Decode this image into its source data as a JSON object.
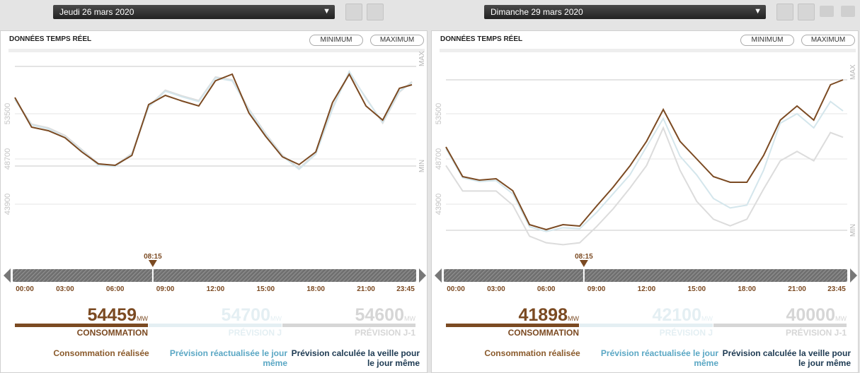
{
  "panels": [
    {
      "date": "Jeudi 26 mars 2020",
      "title": "DONNÉES TEMPS RÉEL",
      "buttons": [
        "MINIMUM",
        "MAXIMUM"
      ],
      "chart": {
        "type": "line",
        "x": [
          0,
          1,
          2,
          3,
          4,
          5,
          6,
          7,
          8,
          9,
          10,
          11,
          12,
          13,
          14,
          15,
          16,
          17,
          18,
          19,
          20,
          21,
          22,
          23,
          23.75
        ],
        "xlim": [
          0,
          23.75
        ],
        "xticks": [
          {
            "value": 0,
            "label": "00:00"
          },
          {
            "value": 3,
            "label": "03:00"
          },
          {
            "value": 6,
            "label": "06:00"
          },
          {
            "value": 9,
            "label": "09:00"
          },
          {
            "value": 12,
            "label": "12:00"
          },
          {
            "value": 15,
            "label": "15:00"
          },
          {
            "value": 18,
            "label": "18:00"
          },
          {
            "value": 21,
            "label": "21:00"
          },
          {
            "value": 23.75,
            "label": "23:45"
          }
        ],
        "ylim": [
          37825,
          59575
        ],
        "yticks": [
          43900,
          48700,
          53500
        ],
        "grid": true,
        "max": {
          "label": "MAX",
          "value": 58525
        },
        "min": {
          "label": "MIN",
          "value": 47950
        },
        "cursor": {
          "label": "08:15",
          "value": 8.25
        },
        "series": [
          {
            "name": "Prévision calculée la veille pour le jour même",
            "color": "#dcdcdc",
            "values": [
              55000,
              52400,
              52000,
              51200,
              49700,
              48200,
              48000,
              49300,
              54300,
              56000,
              55400,
              54900,
              57400,
              57100,
              54000,
              51400,
              49100,
              47700,
              49300,
              54200,
              57800,
              55200,
              52500,
              55800,
              56900
            ]
          },
          {
            "name": "Prévision réactualisée le jour même",
            "color": "#d4e6ec",
            "values": [
              55000,
              52300,
              51900,
              51000,
              49600,
              48000,
              47900,
              49200,
              54200,
              55900,
              55300,
              54800,
              57300,
              57000,
              53900,
              51300,
              49000,
              47600,
              49200,
              54000,
              58000,
              55100,
              52600,
              55900,
              56800
            ]
          },
          {
            "name": "Consommation réalisée",
            "color": "#7b4a22",
            "values": [
              55225,
              52075,
              51700,
              50950,
              49450,
              48175,
              48025,
              49075,
              54475,
              55450,
              54850,
              54325,
              57000,
              57700,
              53575,
              51100,
              48925,
              48100,
              49450,
              54700,
              57700,
              54325,
              52825,
              56200,
              56575
            ]
          }
        ]
      },
      "summary": [
        {
          "value": 54459,
          "unit": "MW",
          "label": "CONSOMMATION"
        },
        {
          "value": 54700,
          "unit": "MW",
          "label": "PRÉVISION J"
        },
        {
          "value": 54600,
          "unit": "MW",
          "label": "PRÉVISION J-1"
        }
      ]
    },
    {
      "date": "Dimanche 29 mars 2020",
      "title": "DONNÉES TEMPS RÉEL",
      "buttons": [
        "MINIMUM",
        "MAXIMUM"
      ],
      "chart": {
        "type": "line",
        "x": [
          0,
          1,
          2,
          3,
          4,
          5,
          6,
          7,
          8,
          9,
          10,
          11,
          12,
          13,
          14,
          15,
          16,
          17,
          18,
          19,
          20,
          21,
          22,
          23,
          23.75
        ],
        "xlim": [
          0,
          23.75
        ],
        "xticks": [
          {
            "value": 0,
            "label": "00:00"
          },
          {
            "value": 3,
            "label": "03:00"
          },
          {
            "value": 6,
            "label": "06:00"
          },
          {
            "value": 9,
            "label": "09:00"
          },
          {
            "value": 12,
            "label": "12:00"
          },
          {
            "value": 15,
            "label": "15:00"
          },
          {
            "value": 18,
            "label": "18:00"
          },
          {
            "value": 21,
            "label": "21:00"
          },
          {
            "value": 23.75,
            "label": "23:45"
          }
        ],
        "ylim": [
          37825,
          59575
        ],
        "yticks": [
          43900,
          48700,
          53500
        ],
        "grid": true,
        "max": {
          "label": "MAX",
          "value": 57100
        },
        "min": {
          "label": "MIN",
          "value": 41125
        },
        "cursor": {
          "label": "08:15",
          "value": 8.25
        },
        "series": [
          {
            "name": "Prévision calculée la veille pour le jour même",
            "color": "#dcdcdc",
            "values": [
              48000,
              45300,
              45300,
              45300,
              43800,
              40500,
              39800,
              39600,
              39800,
              41500,
              43400,
              45600,
              48000,
              52000,
              47500,
              44200,
              42300,
              41600,
              42300,
              45500,
              48500,
              49500,
              48500,
              51500,
              51000
            ]
          },
          {
            "name": "Prévision réactualisée le jour même",
            "color": "#d4e6ec",
            "values": [
              49800,
              46700,
              46300,
              46400,
              45000,
              41500,
              41000,
              41400,
              41300,
              43000,
              45000,
              47000,
              50000,
              53000,
              49000,
              47000,
              44500,
              43500,
              43800,
              47500,
              52500,
              53500,
              52000,
              54800,
              53800
            ]
          },
          {
            "name": "Consommation réalisée",
            "color": "#7b4a22",
            "values": [
              49975,
              46825,
              46450,
              46600,
              45325,
              41725,
              41200,
              41725,
              41575,
              43675,
              45700,
              47950,
              50575,
              53950,
              50575,
              48700,
              46825,
              46225,
              46225,
              49075,
              52825,
              54325,
              52825,
              56575,
              57100
            ]
          }
        ]
      },
      "summary": [
        {
          "value": 41898,
          "unit": "MW",
          "label": "CONSOMMATION"
        },
        {
          "value": 42100,
          "unit": "MW",
          "label": "PRÉVISION J"
        },
        {
          "value": 40000,
          "unit": "MW",
          "label": "PRÉVISION J-1"
        }
      ]
    }
  ]
}
